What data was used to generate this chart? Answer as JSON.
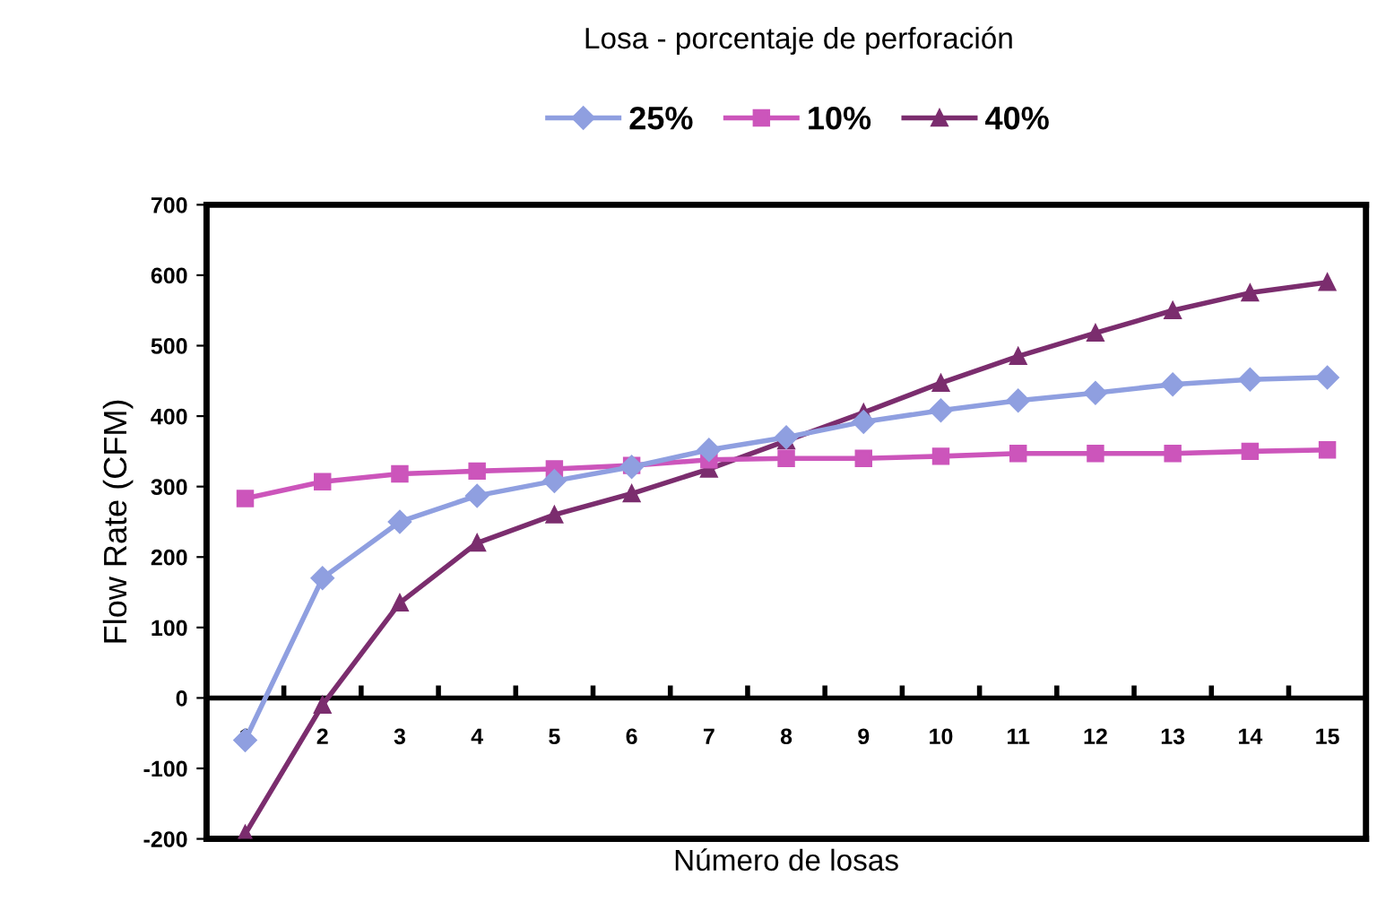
{
  "chart_data": {
    "type": "line",
    "title": "Losa - porcentaje de perforación",
    "xlabel": "Número de losas",
    "ylabel": "Flow Rate (CFM)",
    "categories": [
      "1",
      "2",
      "3",
      "4",
      "5",
      "6",
      "7",
      "8",
      "9",
      "10",
      "11",
      "12",
      "13",
      "14",
      "15"
    ],
    "series": [
      {
        "name": "25%",
        "color": "#8f9fe0",
        "marker": "diamond",
        "values": [
          -60,
          170,
          250,
          287,
          308,
          328,
          352,
          370,
          392,
          408,
          422,
          433,
          445,
          452,
          455
        ]
      },
      {
        "name": "10%",
        "color": "#cc55bb",
        "marker": "square",
        "values": [
          283,
          307,
          318,
          322,
          325,
          330,
          338,
          340,
          340,
          343,
          347,
          347,
          347,
          350,
          352
        ]
      },
      {
        "name": "40%",
        "color": "#7b2d6e",
        "marker": "triangle",
        "values": [
          -193,
          -10,
          135,
          220,
          260,
          290,
          325,
          365,
          405,
          447,
          485,
          518,
          550,
          575,
          590
        ]
      }
    ],
    "ylim": [
      -200,
      700
    ],
    "yticks": [
      -200,
      -100,
      0,
      100,
      200,
      300,
      400,
      500,
      600,
      700
    ],
    "grid": false,
    "legend": "top",
    "line_style": "solid"
  }
}
